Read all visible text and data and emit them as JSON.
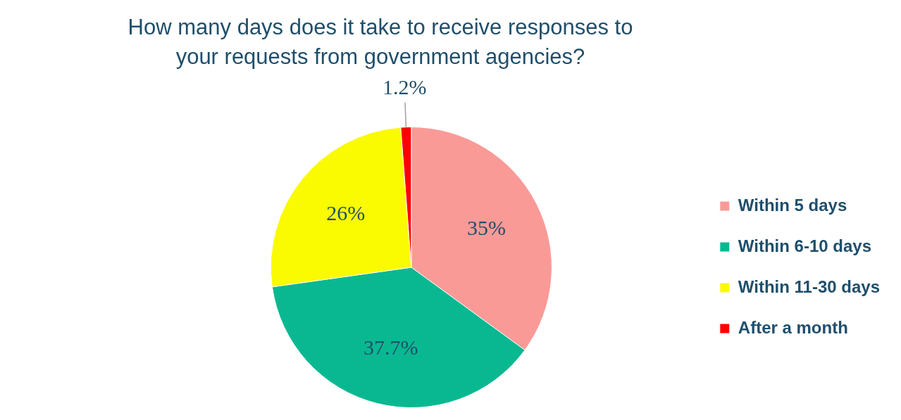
{
  "chart_data": {
    "type": "pie",
    "title": "How many days does it take to receive responses to your requests from government agencies?",
    "categories": [
      "Within 5 days",
      "Within 6-10 days",
      "Within 11-30 days",
      "After a month"
    ],
    "values": [
      35,
      37.7,
      26,
      1.2
    ],
    "colors": [
      "#f99a97",
      "#09b891",
      "#fafa00",
      "#ff0000"
    ],
    "value_labels": [
      "35%",
      "37.7%",
      "26%",
      "1.2%"
    ],
    "legend": "right"
  }
}
